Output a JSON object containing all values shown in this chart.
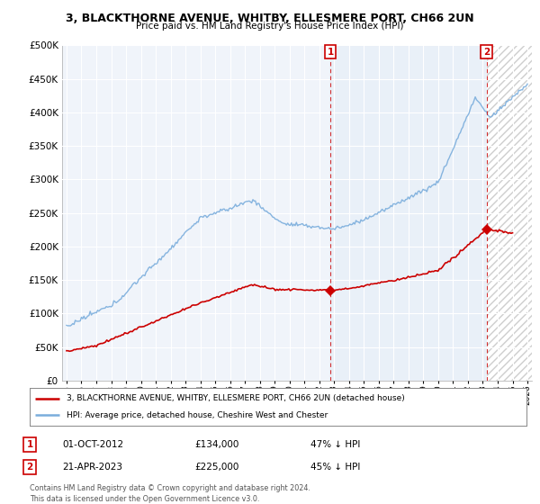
{
  "title": "3, BLACKTHORNE AVENUE, WHITBY, ELLESMERE PORT, CH66 2UN",
  "subtitle": "Price paid vs. HM Land Registry's House Price Index (HPI)",
  "legend_line1": "3, BLACKTHORNE AVENUE, WHITBY, ELLESMERE PORT, CH66 2UN (detached house)",
  "legend_line2": "HPI: Average price, detached house, Cheshire West and Chester",
  "annotation1_label": "1",
  "annotation1_date": "01-OCT-2012",
  "annotation1_price": "£134,000",
  "annotation1_hpi": "47% ↓ HPI",
  "annotation2_label": "2",
  "annotation2_date": "21-APR-2023",
  "annotation2_price": "£225,000",
  "annotation2_hpi": "45% ↓ HPI",
  "footer": "Contains HM Land Registry data © Crown copyright and database right 2024.\nThis data is licensed under the Open Government Licence v3.0.",
  "hpi_color": "#7aaddc",
  "price_color": "#cc0000",
  "annotation_color": "#cc0000",
  "shade_color": "#dce9f5",
  "hatch_color": "#cccccc",
  "ylim": [
    0,
    500000
  ],
  "yticks": [
    0,
    50000,
    100000,
    150000,
    200000,
    250000,
    300000,
    350000,
    400000,
    450000,
    500000
  ],
  "plot_bg_color": "#f0f4fa",
  "sale1_x": 2012.75,
  "sale1_y": 134000,
  "sale2_x": 2023.25,
  "sale2_y": 225000,
  "xmin": 1995.0,
  "xmax": 2026.0
}
